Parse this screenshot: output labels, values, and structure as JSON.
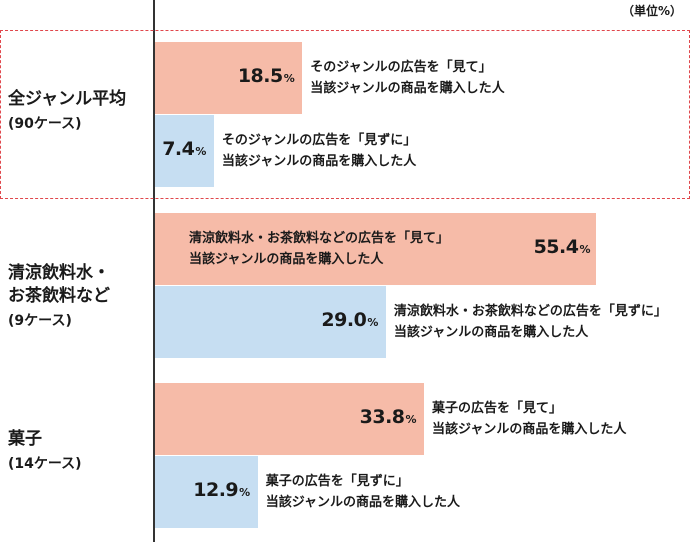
{
  "unit_label": "（単位%）",
  "colors": {
    "seen": "#f6bba8",
    "unseen": "#c6def2",
    "highlight_border": "#e0474c",
    "axis": "#333333"
  },
  "chart_data": {
    "type": "bar",
    "orientation": "horizontal",
    "xlim": [
      0,
      100
    ],
    "groups": [
      {
        "name": "全ジャンル平均",
        "count": "(90ケース)",
        "highlighted": true,
        "bars": [
          {
            "kind": "seen",
            "value": 18.5,
            "value_text": "18.5",
            "pct": "%",
            "desc": [
              "そのジャンルの広告を「見て」",
              "当該ジャンルの商品を購入した人"
            ]
          },
          {
            "kind": "unseen",
            "value": 7.4,
            "value_text": "7.4",
            "pct": "%",
            "desc": [
              "そのジャンルの広告を「見ずに」",
              "当該ジャンルの商品を購入した人"
            ]
          }
        ]
      },
      {
        "name": [
          "清涼飲料水・",
          "お茶飲料など"
        ],
        "count": "(9ケース)",
        "highlighted": false,
        "bars": [
          {
            "kind": "seen",
            "value": 55.4,
            "value_text": "55.4",
            "pct": "%",
            "desc": [
              "清涼飲料水・お茶飲料などの広告を「見て」",
              "当該ジャンルの商品を購入した人"
            ]
          },
          {
            "kind": "unseen",
            "value": 29.0,
            "value_text": "29.0",
            "pct": "%",
            "desc": [
              "清涼飲料水・お茶飲料などの広告を「見ずに」",
              "当該ジャンルの商品を購入した人"
            ]
          }
        ]
      },
      {
        "name": "菓子",
        "count": "(14ケース)",
        "highlighted": false,
        "bars": [
          {
            "kind": "seen",
            "value": 33.8,
            "value_text": "33.8",
            "pct": "%",
            "desc": [
              "菓子の広告を「見て」",
              "当該ジャンルの商品を購入した人"
            ]
          },
          {
            "kind": "unseen",
            "value": 12.9,
            "value_text": "12.9",
            "pct": "%",
            "desc": [
              "菓子の広告を「見ずに」",
              "当該ジャンルの商品を購入した人"
            ]
          }
        ]
      }
    ]
  }
}
